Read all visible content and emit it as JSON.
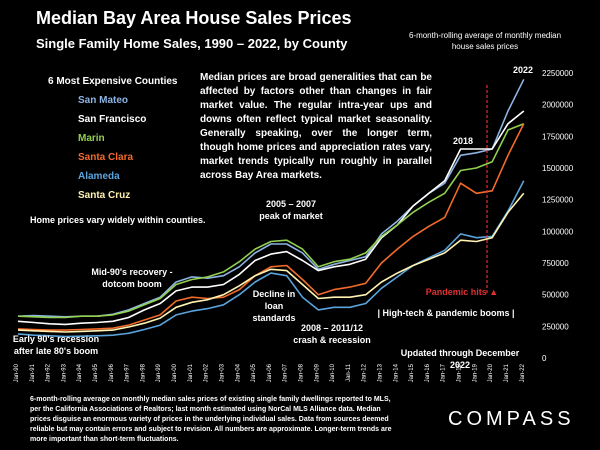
{
  "chart_data": {
    "type": "line",
    "title": "Median Bay Area House Sales Prices",
    "subtitle": "Single Family Home Sales, 1990 – 2022, by County",
    "ylabel_note": "6-month-rolling average of monthly median house sales prices",
    "ylim": [
      0,
      2250000
    ],
    "y_ticks": [
      "0",
      "250000",
      "500000",
      "750000",
      "1000000",
      "1250000",
      "1500000",
      "1750000",
      "2000000",
      "2250000"
    ],
    "x_ticks": [
      "Jan-90",
      "Jan-91",
      "Jan-92",
      "Jan-93",
      "Jan-94",
      "Jan-95",
      "Jan-96",
      "Jan-97",
      "Jan-98",
      "Jan-99",
      "Jan-00",
      "Jan-01",
      "Jan-02",
      "Jan-03",
      "Jan-04",
      "Jan-05",
      "Jan-06",
      "Jan-07",
      "Jan-08",
      "Jan-09",
      "Jan-10",
      "Jan-11",
      "Jan-12",
      "Jan-13",
      "Jan-14",
      "Jan-15",
      "Jan-16",
      "Jan-17",
      "Jan-18",
      "Jan-19",
      "Jan-20",
      "Jan-21",
      "Jan-22"
    ],
    "legend_title": "6 Most Expensive Counties",
    "x": [
      1990,
      1991,
      1992,
      1993,
      1994,
      1995,
      1996,
      1997,
      1998,
      1999,
      2000,
      2001,
      2002,
      2003,
      2004,
      2005,
      2006,
      2007,
      2008,
      2009,
      2010,
      2011,
      2012,
      2013,
      2014,
      2015,
      2016,
      2017,
      2018,
      2019,
      2020,
      2021,
      2022
    ],
    "series": [
      {
        "name": "San Mateo",
        "color": "#8db4e2",
        "values": [
          330000,
          335000,
          330000,
          325000,
          330000,
          330000,
          345000,
          380000,
          430000,
          480000,
          600000,
          640000,
          630000,
          650000,
          720000,
          830000,
          900000,
          900000,
          830000,
          700000,
          740000,
          770000,
          800000,
          980000,
          1080000,
          1200000,
          1300000,
          1380000,
          1600000,
          1620000,
          1650000,
          1950000,
          2200000
        ]
      },
      {
        "name": "San Francisco",
        "color": "#ffffff",
        "values": [
          290000,
          280000,
          270000,
          265000,
          275000,
          280000,
          290000,
          320000,
          380000,
          430000,
          530000,
          560000,
          560000,
          580000,
          660000,
          770000,
          820000,
          840000,
          770000,
          690000,
          720000,
          740000,
          780000,
          950000,
          1050000,
          1200000,
          1300000,
          1400000,
          1650000,
          1650000,
          1650000,
          1850000,
          1950000
        ]
      },
      {
        "name": "Marin",
        "color": "#92d050",
        "values": [
          330000,
          325000,
          320000,
          320000,
          330000,
          330000,
          340000,
          370000,
          420000,
          470000,
          580000,
          620000,
          640000,
          680000,
          760000,
          860000,
          920000,
          930000,
          860000,
          720000,
          760000,
          780000,
          830000,
          960000,
          1050000,
          1150000,
          1230000,
          1300000,
          1480000,
          1500000,
          1550000,
          1800000,
          1850000
        ]
      },
      {
        "name": "Santa Clara",
        "color": "#f26b2b",
        "values": [
          230000,
          225000,
          220000,
          220000,
          225000,
          230000,
          235000,
          260000,
          300000,
          340000,
          450000,
          480000,
          470000,
          480000,
          540000,
          650000,
          720000,
          730000,
          620000,
          500000,
          540000,
          560000,
          590000,
          750000,
          860000,
          960000,
          1040000,
          1110000,
          1380000,
          1300000,
          1320000,
          1600000,
          1850000
        ]
      },
      {
        "name": "Alameda",
        "color": "#5ba3dc",
        "values": [
          190000,
          180000,
          175000,
          170000,
          172000,
          175000,
          180000,
          195000,
          225000,
          260000,
          340000,
          370000,
          390000,
          420000,
          500000,
          600000,
          670000,
          650000,
          480000,
          380000,
          400000,
          400000,
          430000,
          550000,
          640000,
          730000,
          790000,
          850000,
          980000,
          950000,
          960000,
          1160000,
          1400000
        ]
      },
      {
        "name": "Santa Cruz",
        "color": "#fff2b3",
        "values": [
          220000,
          215000,
          210000,
          205000,
          210000,
          215000,
          220000,
          245000,
          275000,
          315000,
          400000,
          440000,
          460000,
          500000,
          570000,
          650000,
          700000,
          690000,
          580000,
          470000,
          480000,
          480000,
          500000,
          600000,
          670000,
          730000,
          780000,
          830000,
          930000,
          920000,
          950000,
          1150000,
          1300000
        ]
      }
    ],
    "annotations": [
      "Early 90's recession after late 80's boom",
      "Mid-90's recovery - dotcom boom",
      "Home prices vary widely within counties.",
      "2005 – 2007 peak of market",
      "Decline in loan standards",
      "2008 – 2011/12 crash & recession",
      "| High-tech & pandemic booms |",
      "2018",
      "2022",
      "Pandemic hits ▲",
      "Updated through December 2022"
    ]
  },
  "info_text": "Median prices are broad generalities that can be affected by factors other than changes in fair market value. The regular intra-year ups and downs often reflect typical market seasonality. Generally speaking, over the longer term, though home prices and appreciation rates vary, market trends typically run roughly in parallel across Bay Area markets.",
  "footnote": "6-month-rolling average on monthly median sales prices of existing single family dwellings reported to MLS, per the California Associations of Realtors; last month estimated using NorCal MLS Alliance data. Median prices disguise an enormous variety of prices in the underlying individual sales. Data from sources deemed reliable but may contain errors and subject to revision. All numbers are approximate. Longer-term trends are more important than short-term fluctuations.",
  "brand": "COMPASS"
}
